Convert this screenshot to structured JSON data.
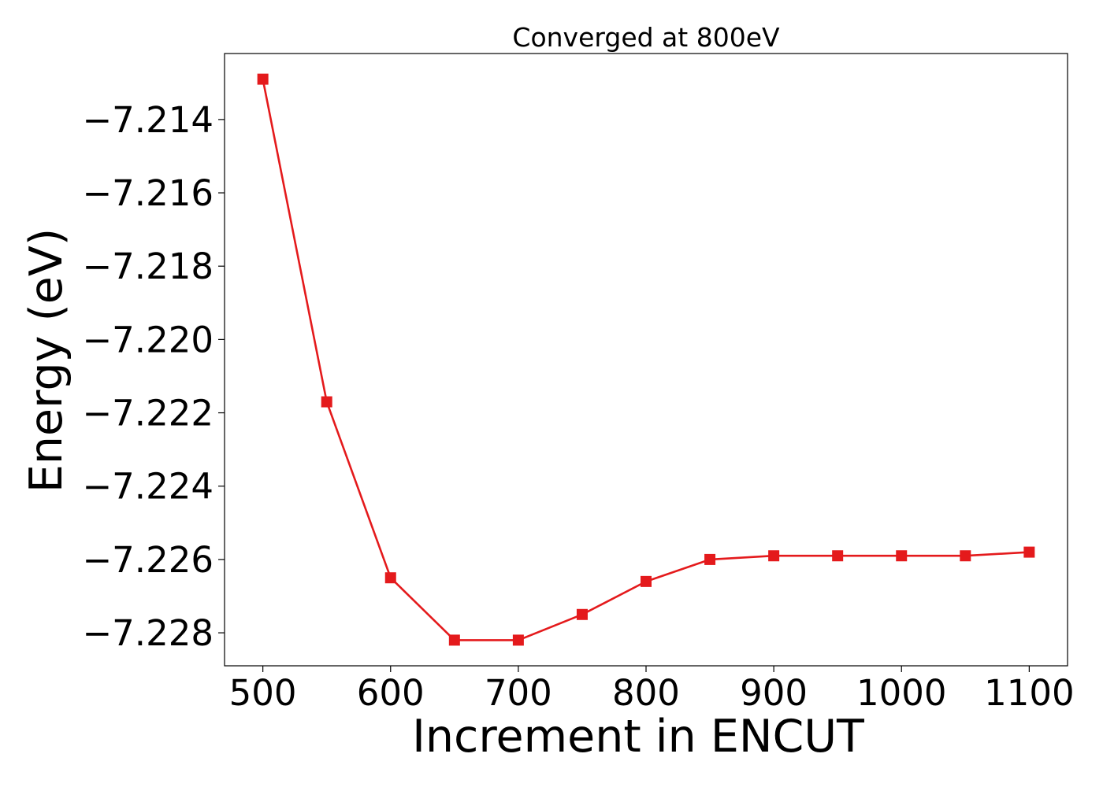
{
  "chart_data": {
    "type": "line",
    "title": "Converged at 800eV",
    "xlabel": "Increment in ENCUT",
    "ylabel": "Energy (eV)",
    "x": [
      500,
      550,
      600,
      650,
      700,
      750,
      800,
      850,
      900,
      950,
      1000,
      1050,
      1100
    ],
    "series": [
      {
        "values": [
          -7.2129,
          -7.2217,
          -7.2265,
          -7.2282,
          -7.2282,
          -7.2275,
          -7.2266,
          -7.226,
          -7.2259,
          -7.2259,
          -7.2259,
          -7.2259,
          -7.2258
        ],
        "color": "#e41a1c",
        "marker": "square"
      }
    ],
    "xticks": [
      500,
      600,
      700,
      800,
      900,
      1000,
      1100
    ],
    "xtick_labels": [
      "500",
      "600",
      "700",
      "800",
      "900",
      "1000",
      "1100"
    ],
    "yticks": [
      -7.214,
      -7.216,
      -7.218,
      -7.22,
      -7.222,
      -7.224,
      -7.226,
      -7.228
    ],
    "ytick_labels": [
      "−7.214",
      "−7.216",
      "−7.218",
      "−7.220",
      "−7.222",
      "−7.224",
      "−7.226",
      "−7.228"
    ],
    "xlim": [
      470,
      1130
    ],
    "ylim": [
      -7.2289,
      -7.2122
    ],
    "grid": false,
    "legend": "none"
  }
}
